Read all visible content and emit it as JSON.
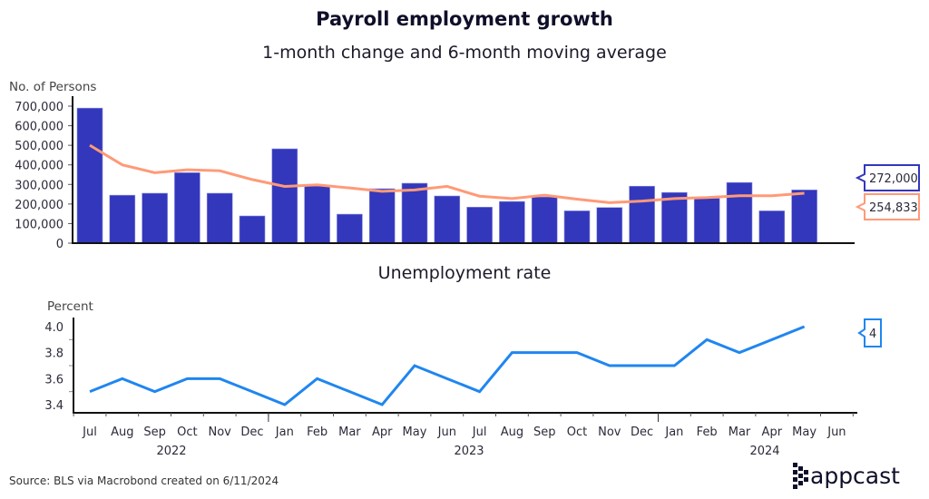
{
  "title": "Payroll employment growth",
  "subtitle": "1-month change and 6-month moving average",
  "source": "Source: BLS via Macrobond created on 6/11/2024",
  "logo": "appcast",
  "colors": {
    "bar": "#3337bb",
    "ma": "#ff9a78",
    "rate": "#1f86f0",
    "axis": "#111111"
  },
  "chart_data": [
    {
      "type": "bar",
      "title": "",
      "ylabel": "No. of Persons",
      "ylim": [
        0,
        700000
      ],
      "yticks": [
        0,
        100000,
        200000,
        300000,
        400000,
        500000,
        600000,
        700000
      ],
      "ytick_labels": [
        "0",
        "100,000",
        "200,000",
        "300,000",
        "400,000",
        "500,000",
        "600,000",
        "700,000"
      ],
      "categories": [
        "Jul 2022",
        "Aug 2022",
        "Sep 2022",
        "Oct 2022",
        "Nov 2022",
        "Dec 2022",
        "Jan 2023",
        "Feb 2023",
        "Mar 2023",
        "Apr 2023",
        "May 2023",
        "Jun 2023",
        "Jul 2023",
        "Aug 2023",
        "Sep 2023",
        "Oct 2023",
        "Nov 2023",
        "Dec 2023",
        "Jan 2024",
        "Feb 2024",
        "Mar 2024",
        "Apr 2024",
        "May 2024"
      ],
      "series": [
        {
          "name": "1-month change",
          "type": "bar",
          "values": [
            690000,
            245000,
            255000,
            360000,
            255000,
            139000,
            482000,
            292000,
            148000,
            278000,
            306000,
            241000,
            184000,
            213000,
            236000,
            165000,
            182000,
            291000,
            259000,
            229000,
            310000,
            165000,
            272000
          ],
          "end_label": "272,000"
        },
        {
          "name": "6-month moving average",
          "type": "line",
          "values": [
            500000,
            400000,
            360000,
            375000,
            370000,
            325000,
            290000,
            298000,
            282000,
            265000,
            272000,
            290000,
            240000,
            228000,
            245000,
            225000,
            207000,
            215000,
            228000,
            233000,
            242000,
            242000,
            254833
          ],
          "end_label": "254,833"
        }
      ]
    },
    {
      "type": "line",
      "title": "Unemployment rate",
      "ylabel": "Percent",
      "ylim": [
        3.35,
        4.05
      ],
      "yticks": [
        3.4,
        3.6,
        3.8,
        4.0
      ],
      "ytick_labels": [
        "3.4",
        "3.6",
        "3.8",
        "4.0"
      ],
      "x_labels": [
        "Jul",
        "Aug",
        "Sep",
        "Oct",
        "Nov",
        "Dec",
        "Jan",
        "Feb",
        "Mar",
        "Apr",
        "May",
        "Jun",
        "Jul",
        "Aug",
        "Sep",
        "Oct",
        "Nov",
        "Dec",
        "Jan",
        "Feb",
        "Mar",
        "Apr",
        "May",
        "Jun"
      ],
      "year_labels": [
        "2022",
        "2023",
        "2024"
      ],
      "series": [
        {
          "name": "Unemployment rate",
          "values": [
            3.5,
            3.6,
            3.5,
            3.6,
            3.6,
            3.5,
            3.4,
            3.6,
            3.5,
            3.4,
            3.7,
            3.6,
            3.5,
            3.8,
            3.8,
            3.8,
            3.7,
            3.7,
            3.7,
            3.9,
            3.8,
            3.9,
            4.0
          ],
          "end_label": "4"
        }
      ]
    }
  ]
}
